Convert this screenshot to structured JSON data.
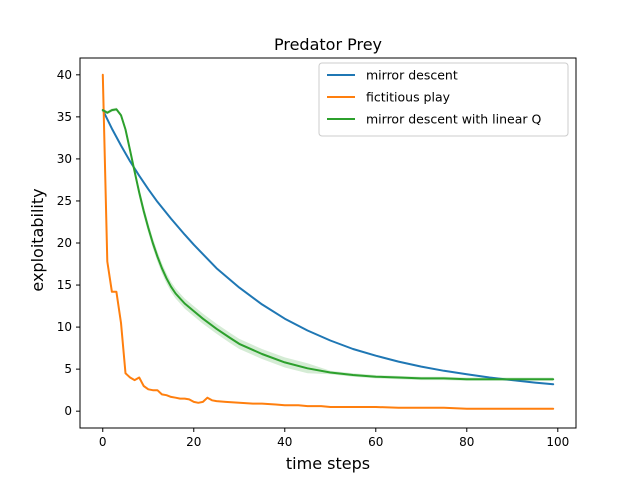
{
  "chart_data": {
    "type": "line",
    "title": "Predator Prey",
    "xlabel": "time steps",
    "ylabel": "exploitability",
    "xlim": [
      -5,
      104
    ],
    "ylim": [
      -2,
      42
    ],
    "xticks": [
      0,
      20,
      40,
      60,
      80,
      100
    ],
    "yticks": [
      0,
      5,
      10,
      15,
      20,
      25,
      30,
      35,
      40
    ],
    "grid": false,
    "legend_position": "top-right",
    "series": [
      {
        "name": "mirror descent",
        "color": "#1f77b4",
        "x": [
          0,
          2,
          4,
          6,
          8,
          10,
          12,
          15,
          18,
          20,
          25,
          30,
          35,
          40,
          45,
          50,
          55,
          60,
          65,
          70,
          75,
          80,
          85,
          90,
          95,
          99
        ],
        "y": [
          35.8,
          33.6,
          31.6,
          29.7,
          28.0,
          26.4,
          24.9,
          22.9,
          21.0,
          19.8,
          17.0,
          14.7,
          12.7,
          11.0,
          9.6,
          8.4,
          7.4,
          6.6,
          5.9,
          5.3,
          4.8,
          4.4,
          4.0,
          3.7,
          3.4,
          3.2
        ]
      },
      {
        "name": "fictitious play",
        "color": "#ff7f0e",
        "x": [
          0,
          1,
          2,
          3,
          4,
          5,
          6,
          7,
          8,
          9,
          10,
          11,
          12,
          13,
          14,
          15,
          16,
          17,
          18,
          19,
          20,
          21,
          22,
          23,
          24,
          25,
          27,
          30,
          33,
          35,
          38,
          40,
          43,
          45,
          48,
          50,
          55,
          60,
          65,
          70,
          75,
          80,
          85,
          90,
          95,
          99
        ],
        "y": [
          40.0,
          17.8,
          14.2,
          14.2,
          10.5,
          4.5,
          4.0,
          3.7,
          4.0,
          3.0,
          2.6,
          2.5,
          2.5,
          2.0,
          1.9,
          1.7,
          1.6,
          1.5,
          1.5,
          1.4,
          1.1,
          1.0,
          1.1,
          1.6,
          1.3,
          1.2,
          1.1,
          1.0,
          0.9,
          0.9,
          0.8,
          0.7,
          0.7,
          0.6,
          0.6,
          0.5,
          0.5,
          0.5,
          0.4,
          0.4,
          0.4,
          0.3,
          0.3,
          0.3,
          0.3,
          0.3
        ]
      },
      {
        "name": "mirror descent with linear Q",
        "color": "#2ca02c",
        "x": [
          0,
          1,
          2,
          3,
          4,
          5,
          6,
          7,
          8,
          9,
          10,
          11,
          12,
          13,
          14,
          15,
          16,
          17,
          18,
          20,
          22,
          25,
          28,
          30,
          35,
          40,
          45,
          50,
          55,
          60,
          65,
          70,
          75,
          80,
          85,
          90,
          95,
          99
        ],
        "y": [
          35.8,
          35.5,
          35.8,
          35.9,
          35.2,
          33.5,
          31.0,
          28.5,
          26.0,
          23.8,
          21.8,
          20.0,
          18.4,
          17.0,
          15.8,
          14.8,
          14.0,
          13.4,
          12.8,
          11.9,
          11.0,
          9.8,
          8.7,
          8.0,
          6.8,
          5.8,
          5.1,
          4.6,
          4.3,
          4.1,
          4.0,
          3.9,
          3.9,
          3.8,
          3.8,
          3.8,
          3.8,
          3.8
        ]
      }
    ]
  }
}
